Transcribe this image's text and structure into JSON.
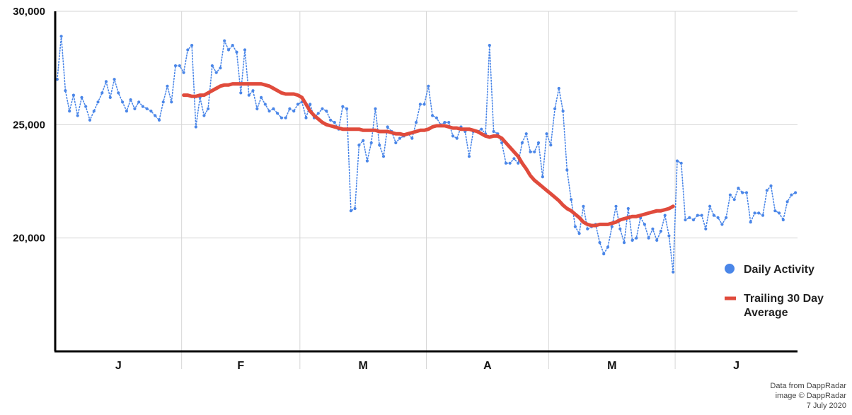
{
  "chart_data": {
    "type": "line",
    "title": "",
    "xlabel": "",
    "ylabel": "",
    "ylim": [
      15000,
      30000
    ],
    "yticks": [
      {
        "value": 30000,
        "label": "30,000"
      },
      {
        "value": 25000,
        "label": "25,000"
      },
      {
        "value": 20000,
        "label": "20,000"
      }
    ],
    "grid": true,
    "legend_position": "right",
    "months": [
      "J",
      "F",
      "M",
      "A",
      "M",
      "J"
    ],
    "month_lengths": [
      31,
      29,
      31,
      30,
      31,
      30
    ],
    "series": [
      {
        "name": "Daily Activity",
        "style": "dotted-line-with-markers",
        "color": "#4a86e8",
        "values": [
          27000,
          28900,
          26500,
          25600,
          26300,
          25400,
          26200,
          25800,
          25200,
          25600,
          26000,
          26400,
          26900,
          26200,
          27000,
          26400,
          26000,
          25600,
          26100,
          25700,
          26000,
          25800,
          25700,
          25600,
          25400,
          25200,
          26000,
          26700,
          26000,
          27600,
          27600,
          27300,
          28300,
          28500,
          24900,
          26200,
          25400,
          25700,
          27600,
          27300,
          27500,
          28700,
          28300,
          28500,
          28200,
          26400,
          28300,
          26300,
          26500,
          25700,
          26200,
          25900,
          25600,
          25700,
          25500,
          25300,
          25300,
          25700,
          25600,
          25900,
          26000,
          25300,
          25900,
          25300,
          25500,
          25700,
          25600,
          25200,
          25100,
          24800,
          25800,
          25700,
          21200,
          21300,
          24100,
          24300,
          23400,
          24200,
          25700,
          24100,
          23600,
          24900,
          24700,
          24200,
          24400,
          24500,
          24600,
          24400,
          25100,
          25900,
          25900,
          26700,
          25400,
          25300,
          25000,
          25100,
          25100,
          24500,
          24400,
          24900,
          24700,
          23600,
          24700,
          24700,
          24800,
          24600,
          28500,
          24700,
          24600,
          24200,
          23300,
          23300,
          23500,
          23300,
          24200,
          24600,
          23800,
          23800,
          24200,
          22700,
          24600,
          24100,
          25700,
          26600,
          25600,
          23000,
          21700,
          20500,
          20200,
          21400,
          20400,
          20500,
          20600,
          19800,
          19300,
          19600,
          20500,
          21400,
          20400,
          19800,
          21300,
          19900,
          20000,
          20900,
          20600,
          20000,
          20400,
          19900,
          20300,
          21000,
          20100,
          18500,
          23400,
          23300,
          20800,
          20900,
          20800,
          21000,
          21000,
          20400,
          21400,
          21000,
          20900,
          20600,
          20900,
          21900,
          21700,
          22200,
          22000,
          22000,
          20700,
          21100,
          21100,
          21000,
          22100,
          22300,
          21200,
          21100,
          20800,
          21600,
          21900,
          22000
        ]
      },
      {
        "name": "Trailing 30 Day Average",
        "style": "thick-line",
        "color": "#e04b3c",
        "start_day": 31,
        "values": [
          26300,
          26300,
          26250,
          26250,
          26300,
          26300,
          26400,
          26500,
          26600,
          26700,
          26750,
          26750,
          26800,
          26800,
          26800,
          26800,
          26800,
          26800,
          26800,
          26800,
          26750,
          26700,
          26600,
          26500,
          26400,
          26350,
          26350,
          26350,
          26300,
          26200,
          25900,
          25600,
          25400,
          25250,
          25100,
          25000,
          24950,
          24900,
          24850,
          24800,
          24800,
          24800,
          24800,
          24800,
          24750,
          24750,
          24750,
          24750,
          24700,
          24700,
          24700,
          24650,
          24600,
          24600,
          24550,
          24600,
          24650,
          24700,
          24750,
          24750,
          24800,
          24900,
          24950,
          24950,
          24950,
          24900,
          24850,
          24850,
          24800,
          24800,
          24800,
          24750,
          24700,
          24600,
          24500,
          24450,
          24500,
          24500,
          24400,
          24200,
          24000,
          23800,
          23600,
          23300,
          23050,
          22750,
          22550,
          22400,
          22250,
          22100,
          21950,
          21800,
          21650,
          21450,
          21300,
          21200,
          21050,
          20900,
          20700,
          20600,
          20550,
          20550,
          20600,
          20600,
          20600,
          20650,
          20700,
          20800,
          20850,
          20900,
          20950,
          20950,
          21000,
          21050,
          21100,
          21150,
          21200,
          21200,
          21250,
          21300,
          21400
        ]
      }
    ],
    "credit": [
      "Data from DappRadar",
      "image © DappRadar",
      "7 July 2020"
    ]
  }
}
